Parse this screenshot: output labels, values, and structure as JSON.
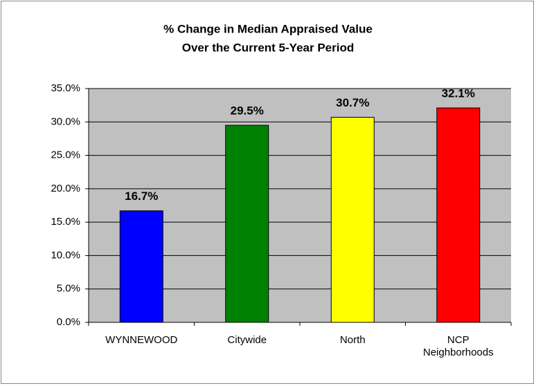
{
  "chart_data": {
    "type": "bar",
    "title": "% Change in Median Appraised Value",
    "subtitle": "Over the Current 5-Year Period",
    "categories": [
      "WYNNEWOOD",
      "Citywide",
      "North",
      "NCP Neighborhoods"
    ],
    "values": [
      16.7,
      29.5,
      30.7,
      32.1
    ],
    "value_labels": [
      "16.7%",
      "29.5%",
      "30.7%",
      "32.1%"
    ],
    "colors": [
      "#0000ff",
      "#008000",
      "#ffff00",
      "#ff0000"
    ],
    "ylim": [
      0,
      35
    ],
    "yticks": [
      {
        "value": 0,
        "label": "0.0%"
      },
      {
        "value": 5,
        "label": "5.0%"
      },
      {
        "value": 10,
        "label": "10.0%"
      },
      {
        "value": 15,
        "label": "15.0%"
      },
      {
        "value": 20,
        "label": "20.0%"
      },
      {
        "value": 25,
        "label": "25.0%"
      },
      {
        "value": 30,
        "label": "30.0%"
      },
      {
        "value": 35,
        "label": "35.0%"
      }
    ],
    "grid": true
  }
}
